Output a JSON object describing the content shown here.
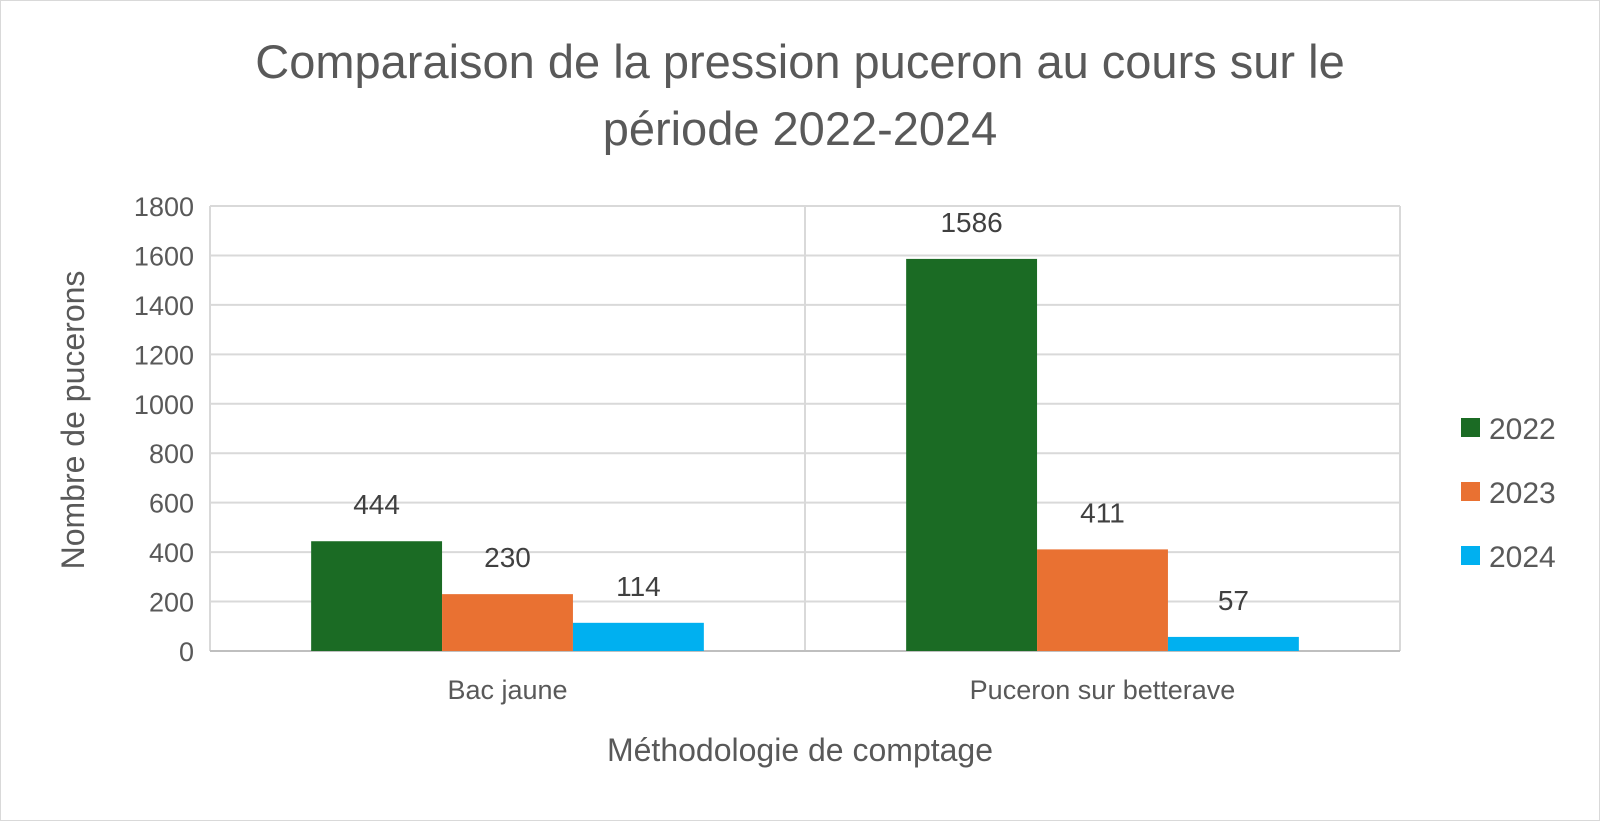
{
  "chart_data": {
    "type": "bar",
    "title_lines": [
      "Comparaison de la pression puceron au cours sur le",
      "période 2022-2024"
    ],
    "xlabel": "Méthodologie de comptage",
    "ylabel": "Nombre de pucerons",
    "categories": [
      "Bac jaune",
      "Puceron sur betterave"
    ],
    "series": [
      {
        "name": "2022",
        "color": "#1b6b24",
        "values": [
          444,
          1586
        ]
      },
      {
        "name": "2023",
        "color": "#e97132",
        "values": [
          230,
          411
        ]
      },
      {
        "name": "2024",
        "color": "#00b0f0",
        "values": [
          114,
          57
        ]
      }
    ],
    "ylim": [
      0,
      1800
    ],
    "yticks": [
      "0",
      "200",
      "400",
      "600",
      "800",
      "1000",
      "1200",
      "1400",
      "1600",
      "1800"
    ],
    "grid": true,
    "legend_position": "right"
  }
}
